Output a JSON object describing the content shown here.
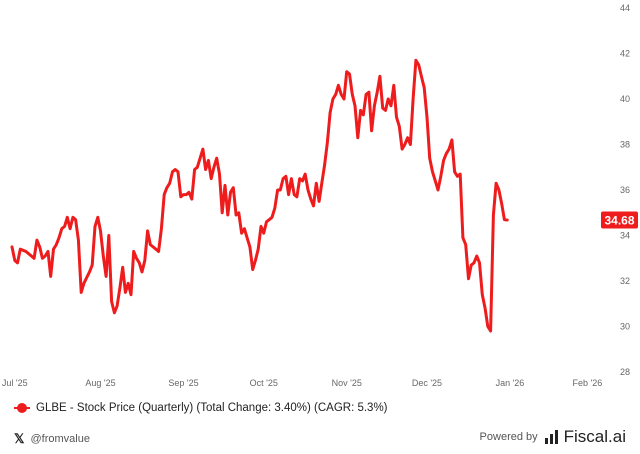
{
  "chart_data": {
    "type": "line",
    "series": [
      {
        "name": "GLBE - Stock Price (Quarterly) (Total Change: 3.40%) (CAGR: 5.3%)",
        "color": "#ee1c1c",
        "points": [
          [
            0,
            33.5
          ],
          [
            1,
            32.9
          ],
          [
            2,
            32.8
          ],
          [
            3,
            33.4
          ],
          [
            5,
            33.3
          ],
          [
            7,
            33.1
          ],
          [
            8,
            33.0
          ],
          [
            9,
            33.8
          ],
          [
            10,
            33.5
          ],
          [
            11,
            33.0
          ],
          [
            12,
            33.1
          ],
          [
            13,
            33.3
          ],
          [
            14,
            32.2
          ],
          [
            15,
            33.4
          ],
          [
            16,
            33.6
          ],
          [
            17,
            33.9
          ],
          [
            18,
            34.3
          ],
          [
            19,
            34.4
          ],
          [
            20,
            34.8
          ],
          [
            21,
            34.3
          ],
          [
            22,
            34.8
          ],
          [
            23,
            34.7
          ],
          [
            24,
            33.8
          ],
          [
            25,
            31.5
          ],
          [
            26,
            31.9
          ],
          [
            28,
            32.4
          ],
          [
            29,
            32.7
          ],
          [
            30,
            34.4
          ],
          [
            31,
            34.8
          ],
          [
            32,
            34.2
          ],
          [
            33,
            33.1
          ],
          [
            34,
            32.2
          ],
          [
            35,
            34.0
          ],
          [
            36,
            31.1
          ],
          [
            37,
            30.6
          ],
          [
            38,
            30.9
          ],
          [
            39,
            31.7
          ],
          [
            40,
            32.6
          ],
          [
            41,
            31.5
          ],
          [
            42,
            31.9
          ],
          [
            43,
            31.4
          ],
          [
            44,
            33.3
          ],
          [
            45,
            33.0
          ],
          [
            46,
            32.8
          ],
          [
            47,
            32.4
          ],
          [
            48,
            32.9
          ],
          [
            49,
            34.2
          ],
          [
            50,
            33.6
          ],
          [
            51,
            33.5
          ],
          [
            52,
            33.4
          ],
          [
            53,
            33.3
          ],
          [
            54,
            34.3
          ],
          [
            55,
            35.8
          ],
          [
            56,
            36.1
          ],
          [
            57,
            36.3
          ],
          [
            58,
            36.8
          ],
          [
            59,
            36.9
          ],
          [
            60,
            36.8
          ],
          [
            61,
            35.7
          ],
          [
            62,
            35.8
          ],
          [
            63,
            35.8
          ],
          [
            64,
            35.9
          ],
          [
            65,
            35.6
          ],
          [
            66,
            36.9
          ],
          [
            67,
            37.0
          ],
          [
            68,
            37.4
          ],
          [
            69,
            37.8
          ],
          [
            70,
            36.9
          ],
          [
            71,
            37.3
          ],
          [
            72,
            36.5
          ],
          [
            73,
            37.0
          ],
          [
            74,
            37.4
          ],
          [
            75,
            36.7
          ],
          [
            76,
            35.0
          ],
          [
            77,
            36.2
          ],
          [
            78,
            34.9
          ],
          [
            79,
            35.9
          ],
          [
            80,
            36.1
          ],
          [
            81,
            34.9
          ],
          [
            82,
            35.0
          ],
          [
            83,
            34.1
          ],
          [
            84,
            34.3
          ],
          [
            85,
            33.9
          ],
          [
            86,
            33.5
          ],
          [
            87,
            32.5
          ],
          [
            88,
            32.9
          ],
          [
            89,
            33.4
          ],
          [
            90,
            34.4
          ],
          [
            91,
            34.1
          ],
          [
            92,
            34.6
          ],
          [
            93,
            34.7
          ],
          [
            94,
            34.8
          ],
          [
            95,
            35.2
          ],
          [
            96,
            36.0
          ],
          [
            97,
            36.0
          ],
          [
            98,
            36.5
          ],
          [
            99,
            36.6
          ],
          [
            100,
            35.8
          ],
          [
            101,
            36.5
          ],
          [
            102,
            35.8
          ],
          [
            103,
            35.7
          ],
          [
            104,
            36.5
          ],
          [
            105,
            36.4
          ],
          [
            106,
            36.7
          ],
          [
            107,
            36.0
          ],
          [
            108,
            35.6
          ],
          [
            109,
            35.3
          ],
          [
            110,
            36.3
          ],
          [
            111,
            35.5
          ],
          [
            112,
            36.3
          ],
          [
            113,
            37.1
          ],
          [
            114,
            38.1
          ],
          [
            115,
            39.4
          ],
          [
            116,
            40.0
          ],
          [
            117,
            40.2
          ],
          [
            118,
            40.6
          ],
          [
            119,
            40.2
          ],
          [
            120,
            40.0
          ],
          [
            121,
            41.2
          ],
          [
            122,
            41.1
          ],
          [
            123,
            40.2
          ],
          [
            124,
            39.7
          ],
          [
            125,
            38.3
          ],
          [
            126,
            39.5
          ],
          [
            127,
            39.3
          ],
          [
            128,
            40.2
          ],
          [
            129,
            40.3
          ],
          [
            130,
            38.6
          ],
          [
            131,
            39.7
          ],
          [
            132,
            40.3
          ],
          [
            133,
            41.0
          ],
          [
            134,
            39.6
          ],
          [
            135,
            39.5
          ],
          [
            136,
            40.0
          ],
          [
            137,
            39.7
          ],
          [
            138,
            40.6
          ],
          [
            139,
            39.2
          ],
          [
            140,
            38.8
          ],
          [
            141,
            37.8
          ],
          [
            142,
            38.0
          ],
          [
            143,
            38.3
          ],
          [
            144,
            38.0
          ],
          [
            145,
            40.0
          ],
          [
            146,
            41.7
          ],
          [
            147,
            41.5
          ],
          [
            148,
            41.0
          ],
          [
            149,
            40.5
          ],
          [
            150,
            39.2
          ],
          [
            151,
            37.4
          ],
          [
            152,
            36.8
          ],
          [
            153,
            36.4
          ],
          [
            154,
            36.0
          ],
          [
            155,
            36.6
          ],
          [
            156,
            37.3
          ],
          [
            157,
            37.6
          ],
          [
            158,
            37.8
          ],
          [
            159,
            38.2
          ],
          [
            160,
            36.8
          ],
          [
            161,
            36.6
          ],
          [
            162,
            36.7
          ],
          [
            163,
            33.9
          ],
          [
            164,
            33.6
          ],
          [
            165,
            32.1
          ],
          [
            166,
            32.7
          ],
          [
            167,
            32.8
          ],
          [
            168,
            33.1
          ],
          [
            169,
            32.8
          ],
          [
            170,
            31.4
          ],
          [
            171,
            30.8
          ],
          [
            172,
            30.0
          ],
          [
            173,
            29.8
          ],
          [
            174,
            34.9
          ],
          [
            175,
            36.3
          ],
          [
            176,
            36.0
          ],
          [
            177,
            35.4
          ],
          [
            178,
            34.7
          ],
          [
            179,
            34.68
          ]
        ]
      }
    ],
    "last_value_label": "34.68",
    "x_ticks": [
      {
        "label": "Jul '25",
        "t": 1
      },
      {
        "label": "Aug '25",
        "t": 32
      },
      {
        "label": "Sep '25",
        "t": 62
      },
      {
        "label": "Oct '25",
        "t": 91
      },
      {
        "label": "Nov '25",
        "t": 121
      },
      {
        "label": "Dec '25",
        "t": 150
      },
      {
        "label": "Jan '26",
        "t": 180
      },
      {
        "label": "Feb '26",
        "t": 208
      }
    ],
    "y_ticks": [
      28,
      30,
      32,
      34,
      36,
      38,
      40,
      42,
      44
    ],
    "ylim": [
      28,
      44
    ],
    "grid": false,
    "legend": "bottom-left"
  },
  "footer": {
    "legend_label": "GLBE - Stock Price (Quarterly) (Total Change: 3.40%) (CAGR: 5.3%)",
    "handle_icon": "x-icon",
    "handle_text": "@fromvalue",
    "powered_text": "Powered by",
    "brand_icon": "fiscal-logo-icon",
    "brand_name": "Fiscal.ai"
  }
}
